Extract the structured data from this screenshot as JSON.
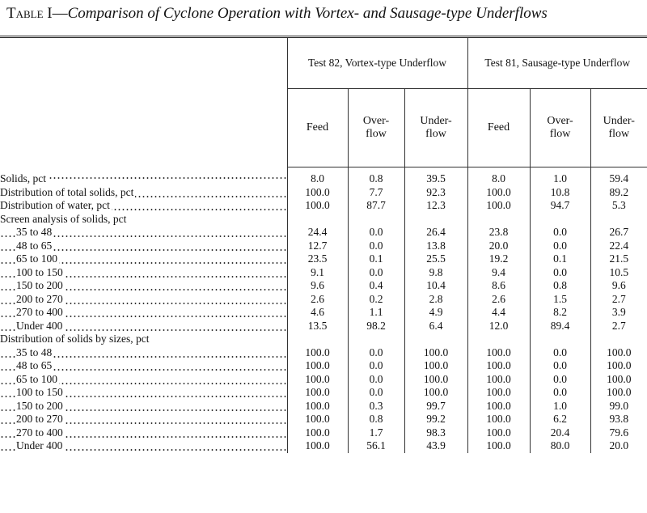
{
  "title": {
    "label": "Table I—",
    "text": "Comparison of Cyclone Operation with Vortex- and Sausage-type Underflows"
  },
  "table": {
    "groups": [
      "Test 82, Vortex-type Underflow",
      "Test 81, Sausage-type Underflow"
    ],
    "columns": [
      [
        "Feed"
      ],
      [
        "Over-",
        "flow"
      ],
      [
        "Under-",
        "flow"
      ],
      [
        "Feed"
      ],
      [
        "Over-",
        "flow"
      ],
      [
        "Under-",
        "flow"
      ]
    ],
    "sections": [
      {
        "rows": [
          {
            "label": "Solids, pct",
            "values": [
              "8.0",
              "0.8",
              "39.5",
              "8.0",
              "1.0",
              "59.4"
            ]
          },
          {
            "label": "Distribution of total solids, pct",
            "values": [
              "100.0",
              "7.7",
              "92.3",
              "100.0",
              "10.8",
              "89.2"
            ]
          },
          {
            "label": "Distribution of water, pct",
            "values": [
              "100.0",
              "87.7",
              "12.3",
              "100.0",
              "94.7",
              "5.3"
            ]
          }
        ]
      },
      {
        "heading": "Screen analysis of solids, pct",
        "rows": [
          {
            "label": "35 to 48",
            "values": [
              "24.4",
              "0.0",
              "26.4",
              "23.8",
              "0.0",
              "26.7"
            ]
          },
          {
            "label": "48 to 65",
            "values": [
              "12.7",
              "0.0",
              "13.8",
              "20.0",
              "0.0",
              "22.4"
            ]
          },
          {
            "label": "65 to 100",
            "values": [
              "23.5",
              "0.1",
              "25.5",
              "19.2",
              "0.1",
              "21.5"
            ]
          },
          {
            "label": "100 to 150",
            "values": [
              "9.1",
              "0.0",
              "9.8",
              "9.4",
              "0.0",
              "10.5"
            ]
          },
          {
            "label": "150 to 200",
            "values": [
              "9.6",
              "0.4",
              "10.4",
              "8.6",
              "0.8",
              "9.6"
            ]
          },
          {
            "label": "200 to 270",
            "values": [
              "2.6",
              "0.2",
              "2.8",
              "2.6",
              "1.5",
              "2.7"
            ]
          },
          {
            "label": "270 to 400",
            "values": [
              "4.6",
              "1.1",
              "4.9",
              "4.4",
              "8.2",
              "3.9"
            ]
          },
          {
            "label": "Under 400",
            "values": [
              "13.5",
              "98.2",
              "6.4",
              "12.0",
              "89.4",
              "2.7"
            ]
          }
        ]
      },
      {
        "heading": "Distribution of solids by sizes, pct",
        "rows": [
          {
            "label": "35 to 48",
            "values": [
              "100.0",
              "0.0",
              "100.0",
              "100.0",
              "0.0",
              "100.0"
            ]
          },
          {
            "label": "48 to 65",
            "values": [
              "100.0",
              "0.0",
              "100.0",
              "100.0",
              "0.0",
              "100.0"
            ]
          },
          {
            "label": "65 to 100",
            "values": [
              "100.0",
              "0.0",
              "100.0",
              "100.0",
              "0.0",
              "100.0"
            ]
          },
          {
            "label": "100 to 150",
            "values": [
              "100.0",
              "0.0",
              "100.0",
              "100.0",
              "0.0",
              "100.0"
            ]
          },
          {
            "label": "150 to 200",
            "values": [
              "100.0",
              "0.3",
              "99.7",
              "100.0",
              "1.0",
              "99.0"
            ]
          },
          {
            "label": "200 to 270",
            "values": [
              "100.0",
              "0.8",
              "99.2",
              "100.0",
              "6.2",
              "93.8"
            ]
          },
          {
            "label": "270 to 400",
            "values": [
              "100.0",
              "1.7",
              "98.3",
              "100.0",
              "20.4",
              "79.6"
            ]
          },
          {
            "label": "Under 400",
            "values": [
              "100.0",
              "56.1",
              "43.9",
              "100.0",
              "80.0",
              "20.0"
            ]
          }
        ]
      }
    ]
  }
}
